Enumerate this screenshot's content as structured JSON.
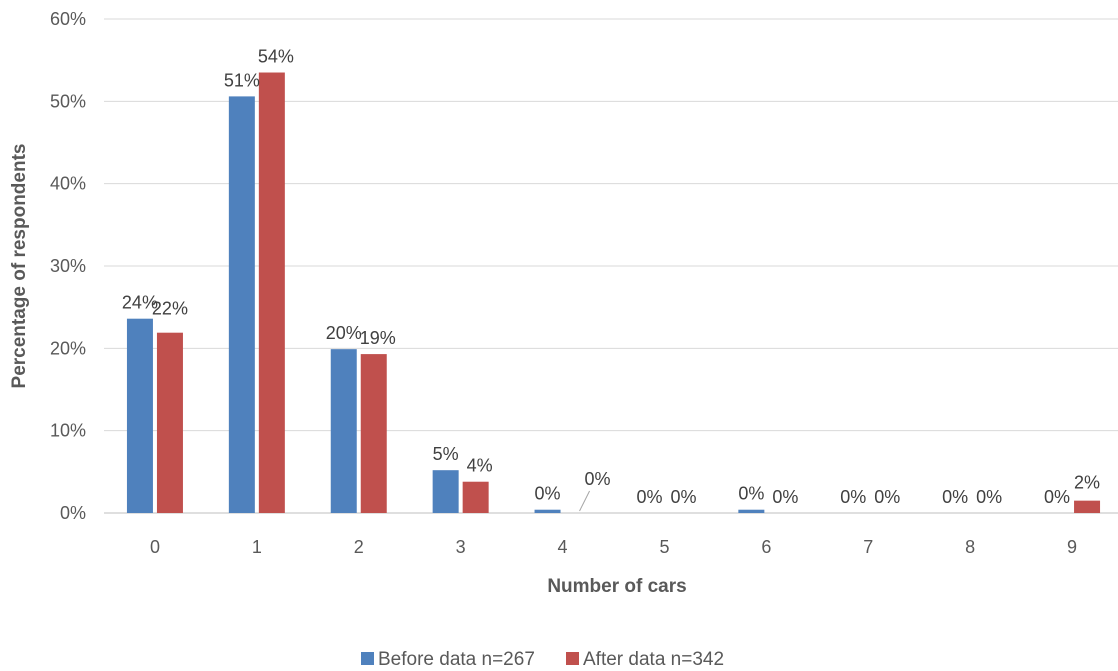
{
  "chart_data": {
    "type": "bar",
    "xlabel": "Number of cars",
    "ylabel": "Percentage of respondents",
    "categories": [
      "0",
      "1",
      "2",
      "3",
      "4",
      "5",
      "6",
      "7",
      "8",
      "9"
    ],
    "ylim": [
      0,
      60
    ],
    "yticks": [
      "0%",
      "10%",
      "20%",
      "30%",
      "40%",
      "50%",
      "60%"
    ],
    "grid": true,
    "legend_position": "bottom",
    "series": [
      {
        "name": "Before data n=267",
        "color": "#4F81BD",
        "values": [
          23.6,
          50.6,
          19.9,
          5.2,
          0.4,
          0,
          0.4,
          0,
          0,
          0
        ],
        "labels": [
          "24%",
          "51%",
          "20%",
          "5%",
          "0%",
          "0%",
          "0%",
          "0%",
          "0%",
          "0%"
        ]
      },
      {
        "name": "After data  n=342",
        "color": "#C0504D",
        "values": [
          21.9,
          53.5,
          19.3,
          3.8,
          0,
          0,
          0,
          0,
          0,
          1.5
        ],
        "labels": [
          "22%",
          "54%",
          "19%",
          "4%",
          "0%",
          "0%",
          "0%",
          "0%",
          "0%",
          "2%"
        ]
      }
    ]
  }
}
